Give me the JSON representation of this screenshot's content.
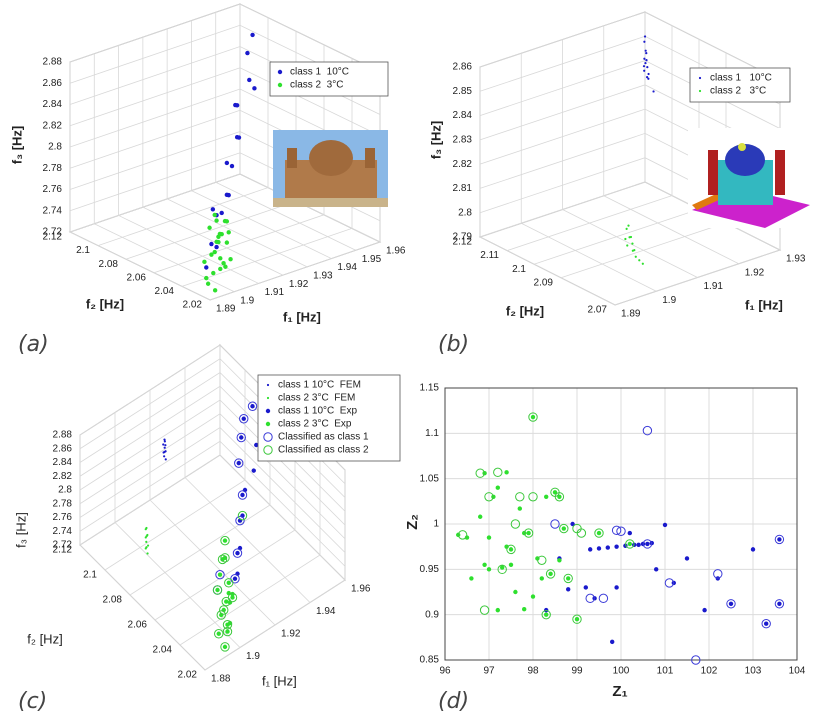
{
  "chart_data": [
    {
      "type": "scatter3d",
      "caption": "(a)",
      "xlabel": "f₁ [Hz]",
      "ylabel": "f₂ [Hz]",
      "zlabel": "f₃ [Hz]",
      "xlim": [
        1.89,
        1.96
      ],
      "xticks": [
        1.89,
        1.9,
        1.91,
        1.92,
        1.93,
        1.94,
        1.95,
        1.96
      ],
      "ylim": [
        2.02,
        2.12
      ],
      "yticks": [
        2.02,
        2.04,
        2.06,
        2.08,
        2.1,
        2.12
      ],
      "zlim": [
        2.72,
        2.88
      ],
      "zticks": [
        2.72,
        2.74,
        2.76,
        2.78,
        2.8,
        2.82,
        2.84,
        2.86,
        2.88
      ],
      "grid": true,
      "legend": "upper right",
      "series": [
        {
          "name": "class 1  10°C",
          "color": "#1a1acc",
          "marker": "dot",
          "x": [
            1.94,
            1.945,
            1.935,
            1.94,
            1.93,
            1.935,
            1.925,
            1.93,
            1.92,
            1.925,
            1.915,
            1.92,
            1.91,
            1.915,
            1.92,
            1.905,
            1.91,
            1.9
          ],
          "y": [
            2.08,
            2.085,
            2.07,
            2.075,
            2.07,
            2.08,
            2.06,
            2.07,
            2.06,
            2.065,
            2.05,
            2.06,
            2.05,
            2.055,
            2.07,
            2.045,
            2.05,
            2.04
          ],
          "z": [
            2.875,
            2.885,
            2.86,
            2.845,
            2.84,
            2.83,
            2.82,
            2.81,
            2.8,
            2.79,
            2.78,
            2.77,
            2.765,
            2.76,
            2.75,
            2.745,
            2.735,
            2.73
          ]
        },
        {
          "name": "class 2  3°C",
          "color": "#2ee02e",
          "marker": "dot",
          "x": [
            1.91,
            1.915,
            1.905,
            1.92,
            1.9,
            1.91,
            1.915,
            1.925,
            1.905,
            1.91,
            1.92,
            1.9,
            1.895,
            1.905,
            1.91,
            1.915,
            1.9,
            1.895,
            1.905,
            1.91,
            1.92,
            1.9,
            1.915,
            1.905
          ],
          "y": [
            2.05,
            2.06,
            2.04,
            2.06,
            2.03,
            2.05,
            2.055,
            2.07,
            2.045,
            2.04,
            2.065,
            2.035,
            2.03,
            2.05,
            2.045,
            2.06,
            2.04,
            2.025,
            2.035,
            2.055,
            2.06,
            2.03,
            2.05,
            2.04
          ],
          "z": [
            2.76,
            2.755,
            2.75,
            2.745,
            2.745,
            2.74,
            2.74,
            2.735,
            2.735,
            2.73,
            2.73,
            2.728,
            2.725,
            2.725,
            2.723,
            2.72,
            2.72,
            2.722,
            2.73,
            2.75,
            2.725,
            2.735,
            2.745,
            2.755
          ]
        }
      ]
    },
    {
      "type": "scatter3d",
      "caption": "(b)",
      "xlabel": "f₁ [Hz]",
      "ylabel": "f₂ [Hz]",
      "zlabel": "f₃ [Hz]",
      "xlim": [
        1.89,
        1.93
      ],
      "xticks": [
        1.89,
        1.9,
        1.91,
        1.92,
        1.93
      ],
      "ylim": [
        2.07,
        2.12
      ],
      "yticks": [
        2.07,
        2.09,
        2.1,
        2.11,
        2.12
      ],
      "zlim": [
        2.79,
        2.86
      ],
      "zticks": [
        2.79,
        2.8,
        2.81,
        2.82,
        2.83,
        2.84,
        2.85,
        2.86
      ],
      "grid": true,
      "legend": "upper right",
      "series": [
        {
          "name": "class 1   10°C",
          "color": "#1a1acc",
          "marker": "small",
          "x": [
            1.9215,
            1.922,
            1.921,
            1.9218,
            1.9212,
            1.922,
            1.9216,
            1.9214,
            1.9219,
            1.9213,
            1.9217,
            1.921,
            1.922,
            1.9216
          ],
          "y": [
            2.107,
            2.108,
            2.106,
            2.107,
            2.106,
            2.108,
            2.107,
            2.106,
            2.108,
            2.107,
            2.106,
            2.105,
            2.107,
            2.104
          ],
          "z": [
            2.862,
            2.859,
            2.857,
            2.855,
            2.853,
            2.852,
            2.851,
            2.85,
            2.849,
            2.848,
            2.847,
            2.846,
            2.845,
            2.841
          ]
        },
        {
          "name": "class 2   3°C",
          "color": "#2ee02e",
          "marker": "small",
          "x": [
            1.9044,
            1.9046,
            1.904,
            1.905,
            1.9043,
            1.9047,
            1.9041,
            1.9045,
            1.9048,
            1.9042,
            1.9044,
            1.9046
          ],
          "y": [
            2.087,
            2.088,
            2.086,
            2.087,
            2.088,
            2.086,
            2.087,
            2.085,
            2.086,
            2.084,
            2.083,
            2.082
          ],
          "z": [
            2.805,
            2.803,
            2.801,
            2.8,
            2.799,
            2.798,
            2.797,
            2.796,
            2.795,
            2.794,
            2.793,
            2.792
          ]
        }
      ]
    },
    {
      "type": "scatter3d",
      "caption": "(c)",
      "xlabel": "f₁ [Hz]",
      "ylabel": "f₂ [Hz]",
      "zlabel": "f₃ [Hz]",
      "xlim": [
        1.88,
        1.96
      ],
      "xticks": [
        1.88,
        1.9,
        1.92,
        1.94,
        1.96
      ],
      "ylim": [
        2.02,
        2.12
      ],
      "yticks": [
        2.02,
        2.04,
        2.06,
        2.08,
        2.1,
        2.12
      ],
      "zlim": [
        2.72,
        2.88
      ],
      "zticks": [
        2.72,
        2.74,
        2.76,
        2.78,
        2.8,
        2.82,
        2.84,
        2.86,
        2.88
      ],
      "grid": true,
      "legend": "upper right",
      "series": [
        {
          "name": "class 1 10°C  FEM",
          "color": "#1a1acc",
          "marker": "small",
          "x": [
            1.909,
            1.9092,
            1.9088,
            1.909,
            1.9091,
            1.9089,
            1.909,
            1.9092,
            1.9088,
            1.909
          ],
          "y": [
            2.093,
            2.093,
            2.092,
            2.094,
            2.093,
            2.092,
            2.093,
            2.094,
            2.093,
            2.092
          ],
          "z": [
            2.875,
            2.872,
            2.869,
            2.866,
            2.863,
            2.86,
            2.857,
            2.854,
            2.851,
            2.848
          ]
        },
        {
          "name": "class 2 3°C  FEM",
          "color": "#2ee02e",
          "marker": "small",
          "x": [
            1.8887,
            1.889,
            1.8885,
            1.8888,
            1.889,
            1.8886,
            1.8889,
            1.8887,
            1.889,
            1.8886
          ],
          "y": [
            2.079,
            2.08,
            2.078,
            2.079,
            2.08,
            2.079,
            2.078,
            2.079,
            2.08,
            2.078
          ],
          "z": [
            2.805,
            2.801,
            2.797,
            2.793,
            2.789,
            2.785,
            2.781,
            2.777,
            2.773,
            2.77
          ]
        },
        {
          "name": "class 1 10°C  Exp",
          "color": "#1a1acc",
          "marker": "dot",
          "x": [
            1.95,
            1.945,
            1.94,
            1.945,
            1.935,
            1.94,
            1.93,
            1.935,
            1.925,
            1.93,
            1.92,
            1.925,
            1.915,
            1.92
          ],
          "y": [
            2.08,
            2.08,
            2.075,
            2.07,
            2.07,
            2.065,
            2.06,
            2.065,
            2.055,
            2.06,
            2.05,
            2.055,
            2.045,
            2.05
          ],
          "z": [
            2.88,
            2.87,
            2.86,
            2.85,
            2.84,
            2.83,
            2.82,
            2.81,
            2.8,
            2.79,
            2.77,
            2.76,
            2.75,
            2.74
          ]
        },
        {
          "name": "class 2 3°C  Exp",
          "color": "#2ee02e",
          "marker": "dot",
          "x": [
            1.92,
            1.915,
            1.91,
            1.905,
            1.92,
            1.91,
            1.9,
            1.915,
            1.905,
            1.895,
            1.91,
            1.9,
            1.905,
            1.915,
            1.895,
            1.9,
            1.91,
            1.905
          ],
          "y": [
            2.06,
            2.055,
            2.05,
            2.045,
            2.06,
            2.04,
            2.035,
            2.05,
            2.04,
            2.03,
            2.045,
            2.03,
            2.035,
            2.05,
            2.025,
            2.03,
            2.04,
            2.035
          ],
          "z": [
            2.77,
            2.76,
            2.755,
            2.75,
            2.745,
            2.74,
            2.74,
            2.735,
            2.73,
            2.73,
            2.725,
            2.725,
            2.72,
            2.72,
            2.72,
            2.735,
            2.745,
            2.75
          ]
        },
        {
          "name": "Classified as class 1",
          "color": "#3a3ad8",
          "marker": "circle",
          "x": [
            1.95,
            1.945,
            1.94,
            1.935,
            1.93,
            1.925,
            1.92,
            1.915,
            1.91,
            1.905
          ],
          "y": [
            2.08,
            2.08,
            2.075,
            2.07,
            2.06,
            2.055,
            2.05,
            2.045,
            2.05,
            2.045
          ],
          "z": [
            2.88,
            2.87,
            2.86,
            2.84,
            2.82,
            2.8,
            2.77,
            2.75,
            2.755,
            2.75
          ]
        },
        {
          "name": "Classified as class 2",
          "color": "#3cc83c",
          "marker": "circle",
          "x": [
            1.93,
            1.92,
            1.915,
            1.905,
            1.92,
            1.91,
            1.9,
            1.915,
            1.905,
            1.895,
            1.91,
            1.9,
            1.895,
            1.9
          ],
          "y": [
            2.06,
            2.06,
            2.055,
            2.045,
            2.06,
            2.04,
            2.035,
            2.05,
            2.04,
            2.03,
            2.045,
            2.03,
            2.025,
            2.03
          ],
          "z": [
            2.79,
            2.77,
            2.76,
            2.75,
            2.745,
            2.74,
            2.74,
            2.735,
            2.73,
            2.73,
            2.725,
            2.725,
            2.72,
            2.735
          ]
        }
      ]
    },
    {
      "type": "scatter",
      "caption": "(d)",
      "xlabel": "Z₁",
      "ylabel": "Z₂",
      "xlim": [
        96,
        104
      ],
      "xticks": [
        96,
        97,
        98,
        99,
        100,
        101,
        102,
        103,
        104
      ],
      "ylim": [
        0.85,
        1.15
      ],
      "yticks": [
        0.85,
        0.9,
        0.95,
        1,
        1.05,
        1.1,
        1.15
      ],
      "grid": true,
      "series": [
        {
          "color": "#1a1acc",
          "marker": "dot",
          "x": [
            99.3,
            99.5,
            99.7,
            99.9,
            100.1,
            100.3,
            100.4,
            100.5,
            100.6,
            100.7,
            101,
            101.5,
            101.9,
            102.2,
            102.5,
            103,
            103.3,
            103.6,
            103.6,
            100.2,
            99.9,
            99.4,
            99.2,
            98.8,
            98.3,
            99.8,
            100.8,
            101.2,
            98.9,
            98.6
          ],
          "y": [
            0.972,
            0.973,
            0.974,
            0.975,
            0.976,
            0.977,
            0.977,
            0.978,
            0.978,
            0.979,
            0.999,
            0.962,
            0.905,
            0.94,
            0.912,
            0.972,
            0.89,
            0.912,
            0.983,
            0.99,
            0.93,
            0.918,
            0.93,
            0.928,
            0.905,
            0.87,
            0.95,
            0.935,
            1,
            0.962
          ]
        },
        {
          "color": "#2ee02e",
          "marker": "dot",
          "x": [
            96.3,
            96.5,
            96.8,
            96.9,
            97,
            97.1,
            97.2,
            97.3,
            97.4,
            97.5,
            97.6,
            97.7,
            97.8,
            97.9,
            98,
            98.1,
            98.2,
            98.3,
            98.4,
            98.5,
            98.6,
            98.7,
            98.8,
            99,
            99.5,
            100.2,
            96.9,
            97.4,
            98,
            97.2,
            97.8,
            98.3,
            98.6,
            97.0,
            97.5,
            96.6
          ],
          "y": [
            0.988,
            0.985,
            1.008,
            1.056,
            0.95,
            1.03,
            1.04,
            0.952,
            0.975,
            0.955,
            0.925,
            1.017,
            0.906,
            0.99,
            1.118,
            0.962,
            0.94,
            1.03,
            0.945,
            1.035,
            0.96,
            0.995,
            0.94,
            0.895,
            0.99,
            0.978,
            0.955,
            1.057,
            0.92,
            0.905,
            0.99,
            0.9,
            1.03,
            0.985,
            0.972,
            0.94
          ]
        },
        {
          "color": "#3a3ad8",
          "marker": "circle",
          "x": [
            100.6,
            99.3,
            99.6,
            100,
            100.6,
            102.2,
            102.5,
            103.6,
            103.6,
            101.7,
            103.3,
            101.1,
            99.9,
            98.5
          ],
          "y": [
            1.103,
            0.918,
            0.918,
            0.992,
            0.978,
            0.945,
            0.912,
            0.983,
            0.912,
            0.85,
            0.89,
            0.935,
            0.993,
            1
          ]
        },
        {
          "color": "#3cc83c",
          "marker": "circle",
          "x": [
            98,
            96.8,
            97,
            97.2,
            97.3,
            97.5,
            97.7,
            98,
            98.3,
            98.5,
            98.6,
            98.7,
            98.8,
            99,
            99.1,
            99.5,
            100.2,
            96.4,
            97.6,
            97.9,
            98.2,
            98.4,
            96.9,
            99
          ],
          "y": [
            1.118,
            1.056,
            1.03,
            1.057,
            0.95,
            0.972,
            1.03,
            1.03,
            0.9,
            1.035,
            1.03,
            0.995,
            0.94,
            0.895,
            0.99,
            0.99,
            0.978,
            0.988,
            1,
            0.99,
            0.96,
            0.945,
            0.905,
            0.995
          ]
        }
      ]
    }
  ]
}
